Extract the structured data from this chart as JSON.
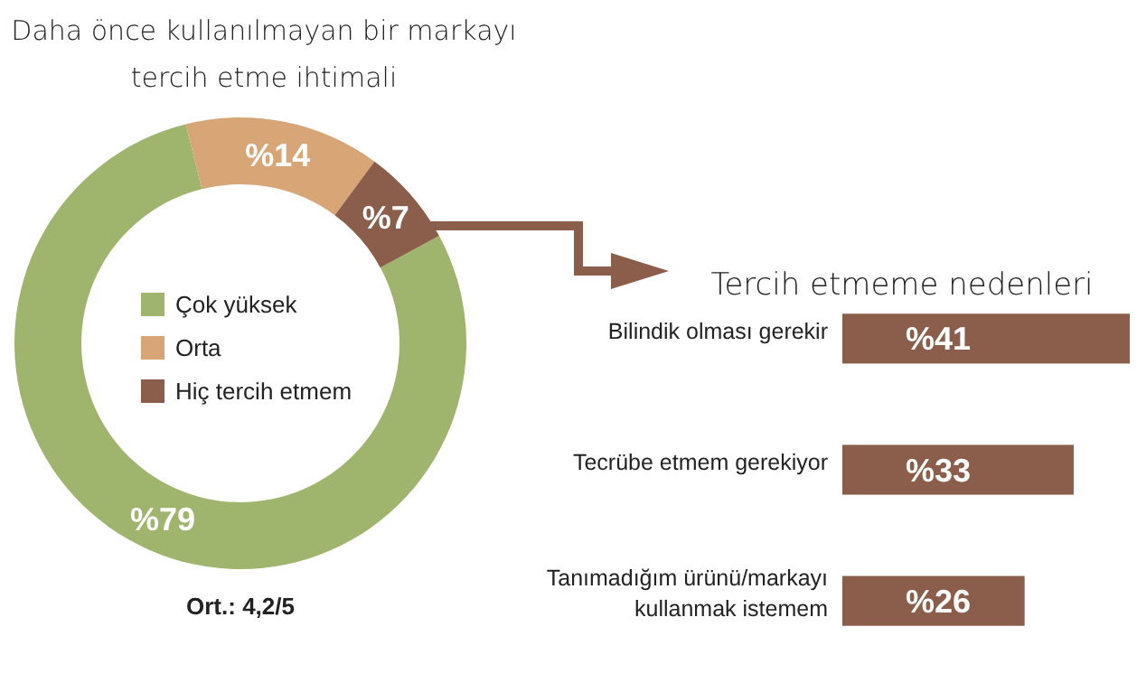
{
  "chart_data": [
    {
      "type": "donut",
      "title": "Daha önce kullanılmayan bir markayı\ntercih etme ihtimali",
      "categories": [
        "Çok yüksek",
        "Orta",
        "Hiç tercih etmem"
      ],
      "values": [
        79,
        14,
        7
      ],
      "colors": [
        "#9fb46c",
        "#d8a676",
        "#8b5e4c"
      ],
      "value_labels": [
        "%79",
        "%14",
        "%7"
      ],
      "legend": "center",
      "annotations": [
        "Ort.: 4,2/5"
      ]
    },
    {
      "type": "bar",
      "orientation": "horizontal",
      "title": "Tercih etmeme nedenleri",
      "categories": [
        "Bilindik olması gerekir",
        "Tecrübe etmem gerekiyor",
        "Tanımadığım ürünü/markayı\nkullanmak istemem"
      ],
      "values": [
        41,
        33,
        26
      ],
      "color": "#8b5e4c",
      "value_labels": [
        "%41",
        "%33",
        "%26"
      ]
    }
  ]
}
